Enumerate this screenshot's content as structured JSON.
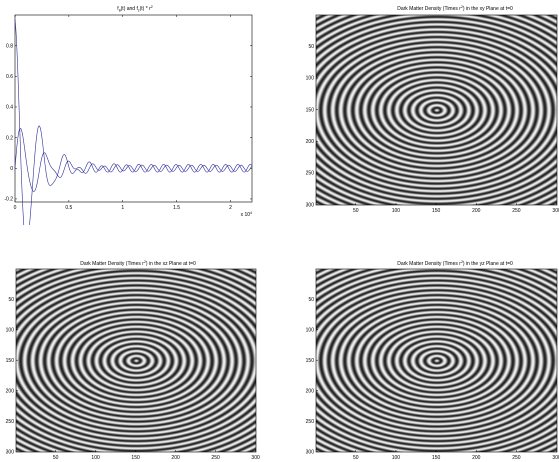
{
  "panels": [
    {
      "id": "line",
      "title_main": "f",
      "title_sub1": "θ",
      "title_mid": "(t) and f",
      "title_sub2": "z",
      "title_end": "(t) * r",
      "title_sup": "2",
      "x_multiplier_base": "x 10",
      "x_multiplier_exp": "4"
    },
    {
      "id": "xy",
      "title_pre": "Dark Matter Density (Times r",
      "title_sup": "2",
      "title_post": ") in the xy Plane at t=0"
    },
    {
      "id": "xz",
      "title_pre": "Dark Matter Density (Times r",
      "title_sup": "2",
      "title_post": ") in the xz Plane at t=0"
    },
    {
      "id": "yz",
      "title_pre": "Dark Matter Density (Times r",
      "title_sup": "2",
      "title_post": ") in the yz Plane at t=0"
    }
  ],
  "chart_data": [
    {
      "type": "line",
      "title": "fθ(t) and fz(t) * r²",
      "xlim": [
        0,
        22000
      ],
      "ylim": [
        -0.22,
        1.0
      ],
      "x_ticks": [
        0,
        5000,
        10000,
        15000,
        20000
      ],
      "x_tick_labels": [
        "0",
        "0.5",
        "1",
        "1.5",
        "2"
      ],
      "y_ticks": [
        -0.2,
        0,
        0.2,
        0.4,
        0.6,
        0.8
      ],
      "y_tick_labels": [
        "-0.2",
        "0",
        "0.2",
        "0.4",
        "0.6",
        "0.8"
      ],
      "series": [
        {
          "color": "#2b2b9a",
          "peaks": [
            [
              0,
              0.97
            ],
            [
              1000,
              -0.2
            ],
            [
              2200,
              0.11
            ],
            [
              3300,
              -0.09
            ],
            [
              4600,
              0.06
            ]
          ]
        },
        {
          "color": "#2b2b9a",
          "peaks": [
            [
              0,
              0.0
            ],
            [
              600,
              0.3
            ],
            [
              1700,
              -0.14
            ],
            [
              2800,
              0.09
            ],
            [
              3900,
              -0.07
            ]
          ]
        }
      ],
      "grid": false
    },
    {
      "type": "heatmap",
      "title": "Dark Matter Density (Times r²) in the xy Plane at t=0",
      "xlim": [
        1,
        300
      ],
      "ylim": [
        1,
        300
      ],
      "x_ticks": [
        50,
        100,
        150,
        200,
        250,
        300
      ],
      "y_ticks": [
        50,
        100,
        150,
        200,
        250,
        300
      ],
      "center": [
        150,
        150
      ],
      "colormap": "gray",
      "pattern": "concentric rings"
    },
    {
      "type": "heatmap",
      "title": "Dark Matter Density (Times r²) in the xz Plane at t=0",
      "xlim": [
        1,
        300
      ],
      "ylim": [
        1,
        300
      ],
      "x_ticks": [
        50,
        100,
        150,
        200,
        250,
        300
      ],
      "y_ticks": [
        50,
        100,
        150,
        200,
        250,
        300
      ],
      "center": [
        150,
        150
      ],
      "colormap": "gray",
      "pattern": "concentric rings"
    },
    {
      "type": "heatmap",
      "title": "Dark Matter Density (Times r²) in the yz Plane at t=0",
      "xlim": [
        1,
        300
      ],
      "ylim": [
        1,
        300
      ],
      "x_ticks": [
        50,
        100,
        150,
        200,
        250,
        300
      ],
      "y_ticks": [
        50,
        100,
        150,
        200,
        250,
        300
      ],
      "center": [
        150,
        150
      ],
      "colormap": "gray",
      "pattern": "concentric rings"
    }
  ]
}
